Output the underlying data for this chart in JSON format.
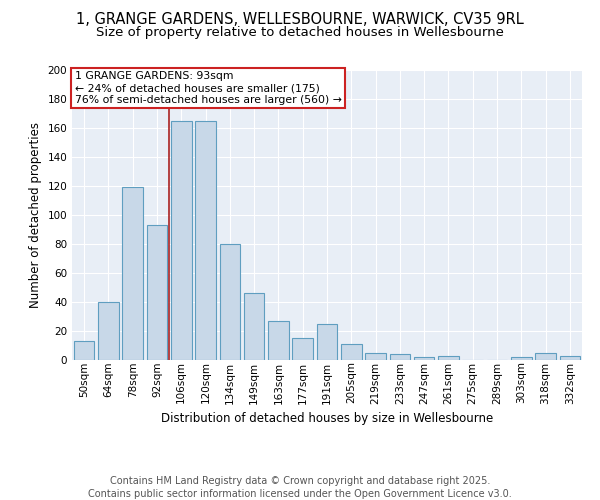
{
  "title_line1": "1, GRANGE GARDENS, WELLESBOURNE, WARWICK, CV35 9RL",
  "title_line2": "Size of property relative to detached houses in Wellesbourne",
  "xlabel": "Distribution of detached houses by size in Wellesbourne",
  "ylabel": "Number of detached properties",
  "categories": [
    "50sqm",
    "64sqm",
    "78sqm",
    "92sqm",
    "106sqm",
    "120sqm",
    "134sqm",
    "149sqm",
    "163sqm",
    "177sqm",
    "191sqm",
    "205sqm",
    "219sqm",
    "233sqm",
    "247sqm",
    "261sqm",
    "275sqm",
    "289sqm",
    "303sqm",
    "318sqm",
    "332sqm"
  ],
  "values": [
    13,
    40,
    119,
    93,
    165,
    165,
    80,
    46,
    27,
    15,
    25,
    11,
    5,
    4,
    2,
    3,
    0,
    0,
    2,
    5,
    3
  ],
  "bar_color": "#c8d8e8",
  "bar_edge_color": "#5f9ec0",
  "annotation_text_line1": "1 GRANGE GARDENS: 93sqm",
  "annotation_text_line2": "← 24% of detached houses are smaller (175)",
  "annotation_text_line3": "76% of semi-detached houses are larger (560) →",
  "annotation_box_facecolor": "#ffffff",
  "annotation_box_edgecolor": "#cc2222",
  "vline_color": "#aa2222",
  "vline_x": 3.5,
  "footer_line1": "Contains HM Land Registry data © Crown copyright and database right 2025.",
  "footer_line2": "Contains public sector information licensed under the Open Government Licence v3.0.",
  "ylim": [
    0,
    200
  ],
  "yticks": [
    0,
    20,
    40,
    60,
    80,
    100,
    120,
    140,
    160,
    180,
    200
  ],
  "plot_bg_color": "#e8eef6",
  "title_fontsize": 10.5,
  "subtitle_fontsize": 9.5,
  "ylabel_fontsize": 8.5,
  "xlabel_fontsize": 8.5,
  "tick_fontsize": 7.5,
  "annotation_fontsize": 7.8,
  "footer_fontsize": 7.0
}
